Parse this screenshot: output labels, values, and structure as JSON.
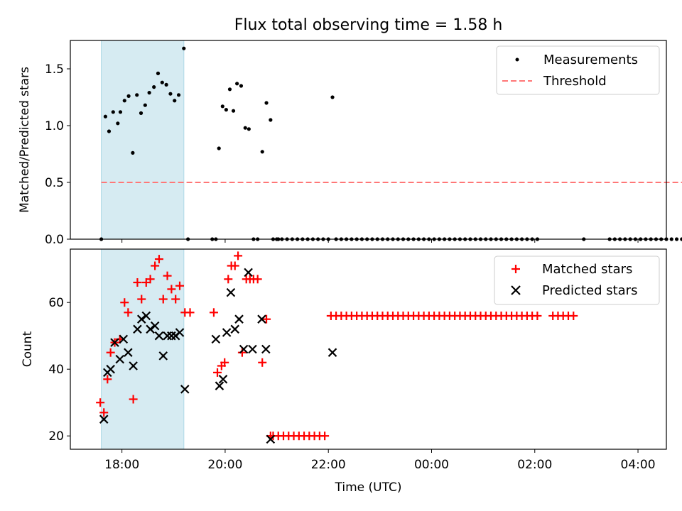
{
  "figure_title": "Flux total observing time = 1.58 h",
  "xlabel": "Time (UTC)",
  "x_tick_labels": [
    "18:00",
    "20:00",
    "22:00",
    "00:00",
    "02:00",
    "04:00"
  ],
  "colors": {
    "measurement": "#000000",
    "threshold": "#ff7777",
    "matched": "#ff0000",
    "predicted": "#000000",
    "highlight_fill": "#add8e6"
  },
  "chart_data": [
    {
      "type": "scatter",
      "panel": "top",
      "ylabel": "Matched/Predicted stars",
      "x_unit": "hours since 00:00 of first day (UTC)",
      "xlim": [
        17.0,
        28.55
      ],
      "ylim": [
        0.0,
        1.75
      ],
      "y_tick_labels": [
        "0.0",
        "0.5",
        "1.0",
        "1.5"
      ],
      "highlight_span": [
        17.6,
        19.2
      ],
      "legend": [
        "Measurements",
        "Threshold"
      ],
      "legend_location": "upper right",
      "threshold": {
        "name": "Threshold",
        "value": 0.5,
        "x_range": [
          17.6,
          28.9
        ]
      },
      "series": [
        {
          "name": "Measurements",
          "x": [
            17.6,
            17.68,
            17.75,
            17.83,
            17.92,
            17.97,
            18.05,
            18.13,
            18.21,
            18.29,
            18.37,
            18.45,
            18.53,
            18.62,
            18.7,
            18.78,
            18.86,
            18.94,
            19.02,
            19.1,
            19.2,
            19.28,
            19.75,
            19.82,
            19.88,
            19.95,
            20.02,
            20.09,
            20.16,
            20.23,
            20.31,
            20.39,
            20.46,
            20.55,
            20.63,
            20.72,
            20.8,
            20.88,
            20.93,
            21.03,
            22.08
          ],
          "y": [
            0.0,
            1.08,
            0.95,
            1.12,
            1.02,
            1.12,
            1.22,
            1.26,
            0.76,
            1.27,
            1.11,
            1.18,
            1.29,
            1.34,
            1.46,
            1.38,
            1.36,
            1.28,
            1.22,
            1.27,
            1.68,
            0.0,
            0.0,
            0.0,
            0.8,
            1.17,
            1.14,
            1.32,
            1.13,
            1.37,
            1.35,
            0.98,
            0.97,
            0.0,
            0.0,
            0.77,
            1.2,
            1.05,
            0.0,
            0.0,
            1.25
          ],
          "zero_runs": [
            [
              21.0,
              22.0,
              0.1
            ],
            [
              22.15,
              26.05,
              0.1
            ],
            [
              26.95,
              26.95,
              0.1
            ],
            [
              27.45,
              27.95,
              0.1
            ],
            [
              28.05,
              28.9,
              0.1
            ]
          ]
        }
      ]
    },
    {
      "type": "scatter",
      "panel": "bottom",
      "ylabel": "Count",
      "xlabel": "Time (UTC)",
      "x_unit": "hours since 00:00 of first day (UTC)",
      "xlim": [
        17.0,
        28.55
      ],
      "ylim": [
        16.0,
        76.0
      ],
      "y_tick_labels": [
        "20",
        "40",
        "60"
      ],
      "highlight_span": [
        17.6,
        19.2
      ],
      "legend": [
        "Matched stars",
        "Predicted stars"
      ],
      "legend_location": "upper right",
      "series": [
        {
          "name": "Matched stars",
          "marker": "plus",
          "x": [
            17.58,
            17.65,
            17.72,
            17.78,
            17.86,
            17.96,
            18.05,
            18.12,
            18.22,
            18.3,
            18.38,
            18.47,
            18.55,
            18.64,
            18.72,
            18.8,
            18.88,
            18.96,
            19.04,
            19.12,
            19.22,
            19.32,
            19.78,
            19.85,
            19.93,
            19.99,
            20.06,
            20.12,
            20.19,
            20.25,
            20.33,
            20.41,
            20.48,
            20.55,
            20.63,
            20.72,
            20.8,
            20.88
          ],
          "y": [
            30,
            27,
            37,
            45,
            48,
            49,
            60,
            57,
            31,
            66,
            61,
            66,
            67,
            71,
            73,
            61,
            68,
            64,
            61,
            65,
            57,
            57,
            57,
            39,
            41,
            42,
            67,
            71,
            71,
            74,
            45,
            67,
            67,
            67,
            67,
            42,
            55,
            20
          ],
          "runs": [
            [
              20.93,
              22.0,
              0.1,
              20
            ],
            [
              22.05,
              26.05,
              0.1,
              56
            ],
            [
              26.35,
              26.75,
              0.1,
              56
            ]
          ]
        },
        {
          "name": "Predicted stars",
          "marker": "x",
          "x": [
            17.65,
            17.72,
            17.78,
            17.86,
            17.96,
            18.03,
            18.12,
            18.22,
            18.3,
            18.38,
            18.47,
            18.55,
            18.64,
            18.72,
            18.8,
            18.88,
            18.96,
            19.04,
            19.12,
            19.22,
            19.82,
            19.89,
            19.96,
            20.03,
            20.11,
            20.19,
            20.27,
            20.36,
            20.45,
            20.53,
            20.71,
            20.79,
            20.88,
            22.08
          ],
          "y": [
            25,
            39,
            40,
            48,
            43,
            49,
            45,
            41,
            52,
            55,
            56,
            52,
            53,
            50,
            44,
            50,
            50,
            50,
            51,
            34,
            49,
            35,
            37,
            51,
            63,
            52,
            55,
            46,
            69,
            46,
            55,
            46,
            19,
            45
          ]
        }
      ]
    }
  ]
}
